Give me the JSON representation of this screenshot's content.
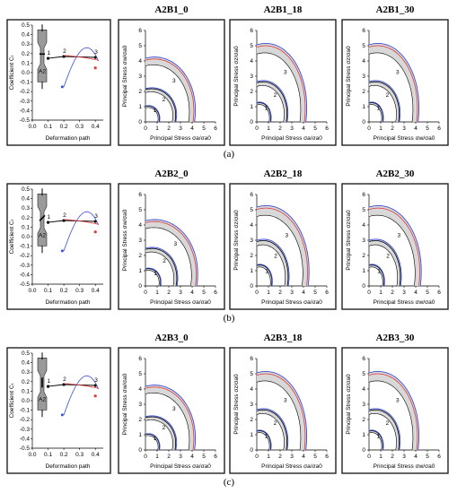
{
  "rows": [
    {
      "label": "(a)",
      "titles": [
        "A2B1_0",
        "A2B1_18",
        "A2B1_30"
      ],
      "coef_panel": {
        "ylabel": "Coefficient Cₜ",
        "xlabel": "Deformation path",
        "xticks": [
          "0.0",
          "0.1",
          "0.2",
          "0.3",
          "0.4"
        ],
        "yticks": [
          "-0.5",
          "-0.4",
          "-0.3",
          "-0.2",
          "-0.1",
          "0.0",
          "0.1",
          "0.2",
          "0.3",
          "0.4",
          "0.5"
        ],
        "specimen": "A2",
        "path_labels": [
          "1",
          "2",
          "3"
        ]
      },
      "stress_panels": [
        {
          "xlabel": "Principal Stress σa/σa0",
          "ylabel": "Principal Stress σw/σa0"
        },
        {
          "xlabel": "Principal Stress σa/σa0",
          "ylabel": "Principal Stress σz/σa0"
        },
        {
          "xlabel": "Principal Stress σw/σa0",
          "ylabel": "Principal Stress σz/σa0"
        }
      ]
    },
    {
      "label": "(b)",
      "titles": [
        "A2B2_0",
        "A2B2_18",
        "A2B2_30"
      ],
      "coef_panel": {
        "ylabel": "Coefficient Cₜ",
        "xlabel": "Deformation path",
        "xticks": [
          "0.0",
          "0.1",
          "0.2",
          "0.3",
          "0.4"
        ],
        "yticks": [
          "-0.5",
          "-0.4",
          "-0.3",
          "-0.2",
          "-0.1",
          "0.0",
          "0.1",
          "0.2",
          "0.3",
          "0.4",
          "0.5"
        ],
        "specimen": "A2",
        "path_labels": [
          "1",
          "2",
          "3"
        ]
      },
      "stress_panels": [
        {
          "xlabel": "Principal Stress σa/σa0",
          "ylabel": "Principal Stress σw/σa0"
        },
        {
          "xlabel": "Principal Stress σa/σa0",
          "ylabel": "Principal Stress σz/σa0"
        },
        {
          "xlabel": "Principal Stress σw/σa0",
          "ylabel": "Principal Stress σz/σa0"
        }
      ]
    },
    {
      "label": "(c)",
      "titles": [
        "A2B3_0",
        "A2B3_18",
        "A2B3_30"
      ],
      "coef_panel": {
        "ylabel": "Coefficient Cₜ",
        "xlabel": "Deformation path",
        "xticks": [
          "0.0",
          "0.1",
          "0.2",
          "0.3",
          "0.4"
        ],
        "yticks": [
          "-0.5",
          "-0.4",
          "-0.3",
          "-0.2",
          "-0.1",
          "0.0",
          "0.1",
          "0.2",
          "0.3",
          "0.4",
          "0.5"
        ],
        "specimen": "A2",
        "path_labels": [
          "1",
          "2",
          "3"
        ]
      },
      "stress_panels": [
        {
          "xlabel": "Principal Stress σa/σa0",
          "ylabel": "Principal Stress σw/σa0"
        },
        {
          "xlabel": "Principal Stress σa/σa0",
          "ylabel": "Principal Stress σz/σa0"
        },
        {
          "xlabel": "Principal Stress σw/σa0",
          "ylabel": "Principal Stress σz/σa0"
        }
      ]
    }
  ],
  "stress_axis_ticks": {
    "x": [
      "0",
      "1",
      "2",
      "3",
      "4",
      "5",
      "6"
    ],
    "y": [
      "0",
      "1",
      "2",
      "3",
      "4",
      "5",
      "6"
    ]
  },
  "curve_labels": [
    "1",
    "2",
    "3"
  ],
  "colors": {
    "blue": "#3a4fd8",
    "red": "#e03a3a",
    "black": "#000000",
    "band": "#d8d8d8"
  }
}
